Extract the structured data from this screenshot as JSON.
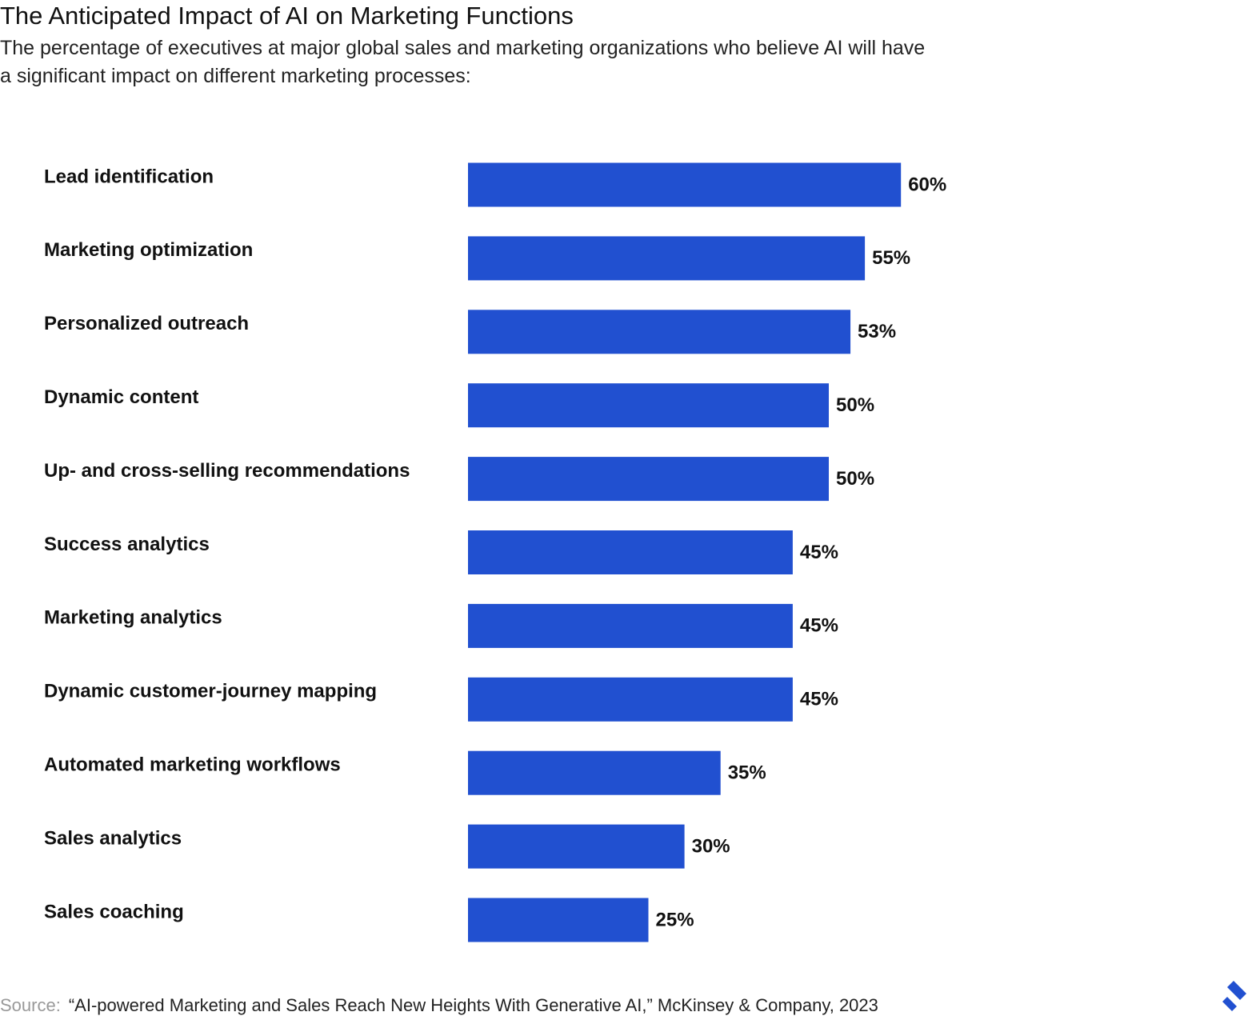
{
  "chart_data": {
    "type": "bar",
    "orientation": "horizontal",
    "title": "The Anticipated Impact of AI on Marketing Functions",
    "subtitle": [
      "The percentage of executives at major global sales and marketing organizations who believe AI will have",
      "a significant impact on different marketing processes:"
    ],
    "categories": [
      "Lead identification",
      "Marketing optimization",
      "Personalized outreach",
      "Dynamic content",
      "Up- and cross-selling recommendations",
      "Success analytics",
      "Marketing analytics",
      "Dynamic customer-journey mapping",
      "Automated marketing workflows",
      "Sales analytics",
      "Sales coaching"
    ],
    "values": [
      60,
      55,
      53,
      50,
      50,
      45,
      45,
      45,
      35,
      30,
      25
    ],
    "value_labels": [
      "60%",
      "55%",
      "53%",
      "50%",
      "50%",
      "45%",
      "45%",
      "45%",
      "35%",
      "30%",
      "25%"
    ],
    "color": "#2150d0",
    "source_label": "Source:",
    "source": "“AI-powered Marketing and Sales Reach New Heights With Generative AI,” McKinsey & Company, 2023"
  }
}
